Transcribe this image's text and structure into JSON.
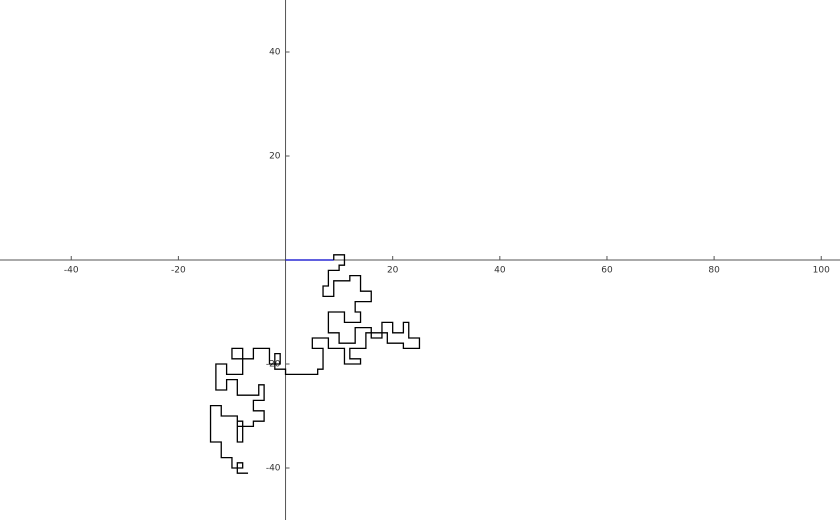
{
  "chart_data": {
    "type": "line",
    "xlim": [
      -53.3,
      103.5
    ],
    "ylim": [
      -50,
      50
    ],
    "xticks": [
      -40,
      -20,
      20,
      40,
      60,
      80,
      100
    ],
    "yticks": [
      -40,
      -20,
      20,
      40
    ],
    "series": [
      {
        "color": "#0000cc",
        "x": [
          0,
          9
        ],
        "values": [
          0,
          0
        ]
      },
      {
        "color": "#000000",
        "x": [
          9,
          9,
          11,
          11,
          10,
          10,
          8,
          8,
          7,
          7,
          9,
          9,
          12,
          12,
          14,
          14,
          16,
          16,
          13,
          13,
          14,
          14,
          11,
          11,
          8,
          8,
          10,
          10,
          13,
          13,
          16,
          16,
          18,
          18,
          20,
          20,
          22,
          22,
          23,
          23,
          25,
          25,
          22,
          22,
          19,
          19,
          15,
          15,
          12,
          12,
          14,
          14,
          11,
          11,
          8,
          8,
          5,
          5,
          7,
          7,
          6,
          6,
          0,
          0,
          -2,
          -2,
          -1,
          -1,
          -3,
          -3,
          -6,
          -6,
          -10,
          -10,
          -8,
          -8,
          -11,
          -11,
          -13,
          -13,
          -11,
          -11,
          -9,
          -9,
          -5,
          -5,
          -4,
          -4,
          -6,
          -6,
          -4,
          -4,
          -6,
          -6,
          -9,
          -9,
          -8,
          -8,
          -9,
          -9,
          -12,
          -12,
          -14,
          -14,
          -12,
          -12,
          -10,
          -10,
          -8,
          -8,
          -9,
          -9,
          -7
        ],
        "values": [
          0,
          1,
          1,
          -1,
          -1,
          -2,
          -2,
          -5,
          -5,
          -7,
          -7,
          -4,
          -4,
          -3,
          -3,
          -6,
          -6,
          -8,
          -8,
          -10,
          -10,
          -12,
          -12,
          -10,
          -10,
          -14,
          -14,
          -16,
          -16,
          -13,
          -13,
          -15,
          -15,
          -12,
          -12,
          -14,
          -14,
          -12,
          -12,
          -15,
          -15,
          -17,
          -17,
          -16,
          -16,
          -14,
          -14,
          -17,
          -17,
          -19,
          -19,
          -20,
          -20,
          -17,
          -17,
          -15,
          -15,
          -17,
          -17,
          -21,
          -21,
          -22,
          -22,
          -21,
          -21,
          -18,
          -18,
          -20,
          -20,
          -17,
          -17,
          -19,
          -19,
          -17,
          -17,
          -22,
          -22,
          -20,
          -20,
          -25,
          -25,
          -23,
          -23,
          -26,
          -26,
          -24,
          -24,
          -27,
          -27,
          -29,
          -29,
          -31,
          -31,
          -32,
          -32,
          -31,
          -31,
          -35,
          -35,
          -30,
          -30,
          -28,
          -28,
          -35,
          -35,
          -38,
          -38,
          -40,
          -40,
          -39,
          -39,
          -41,
          -41
        ]
      }
    ]
  }
}
